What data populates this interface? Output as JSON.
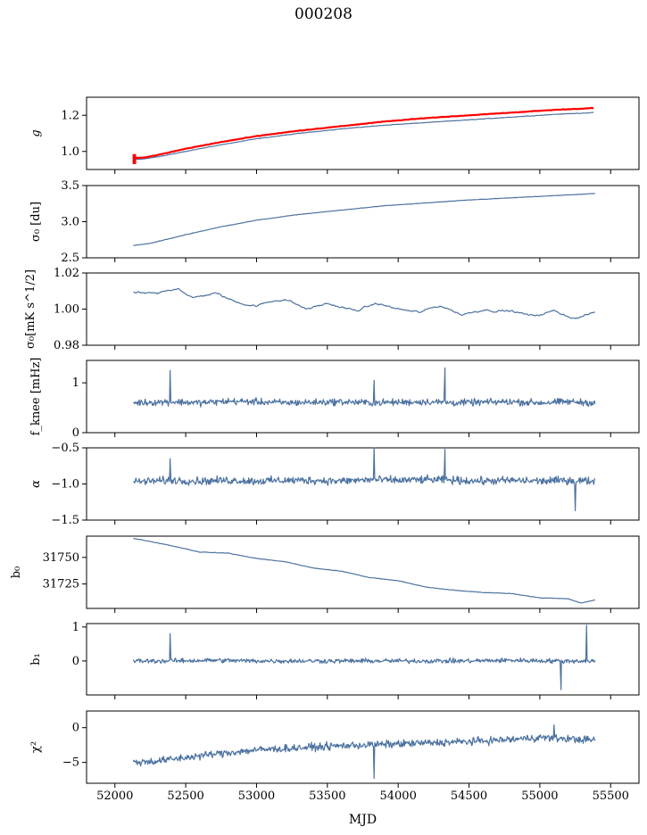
{
  "title": "000208",
  "xlabel": "MJD",
  "x_ticks": [
    52000,
    52500,
    53000,
    53500,
    54000,
    54500,
    55000,
    55500
  ],
  "colors": {
    "series": "#4c72a0",
    "model": "#ff0000",
    "axes": "#000000"
  },
  "chart_data": [
    {
      "type": "line",
      "panel": "g",
      "ylabel": "g",
      "ylim": [
        0.9,
        1.3
      ],
      "yticks": [
        1.0,
        1.2
      ],
      "grid": false,
      "x": [
        52130,
        52200,
        52300,
        52500,
        52700,
        53000,
        53300,
        53600,
        53900,
        54200,
        54500,
        54800,
        55100,
        55380
      ],
      "series": [
        {
          "values": [
            0.955,
            0.958,
            0.97,
            1.0,
            1.03,
            1.07,
            1.1,
            1.125,
            1.145,
            1.16,
            1.175,
            1.19,
            1.205,
            1.215
          ]
        },
        {
          "values": [
            0.965,
            0.965,
            0.98,
            1.015,
            1.045,
            1.085,
            1.115,
            1.14,
            1.165,
            1.185,
            1.2,
            1.215,
            1.23,
            1.24
          ]
        }
      ]
    },
    {
      "type": "line",
      "panel": "sigma0_du",
      "ylabel": "σ₀ [du]",
      "ylim": [
        2.5,
        3.5
      ],
      "yticks": [
        2.5,
        3.0,
        3.5
      ],
      "grid": false,
      "x": [
        52130,
        52250,
        52500,
        52750,
        53000,
        53300,
        53600,
        53900,
        54200,
        54500,
        54800,
        55100,
        55390
      ],
      "values": [
        2.67,
        2.7,
        2.82,
        2.93,
        3.02,
        3.1,
        3.16,
        3.22,
        3.26,
        3.3,
        3.33,
        3.36,
        3.39
      ]
    },
    {
      "type": "line",
      "panel": "sigma0_mK",
      "ylabel": "σ₀[mK s^1/2]",
      "ylim": [
        0.98,
        1.02
      ],
      "yticks": [
        0.98,
        1.0,
        1.02
      ],
      "grid": false,
      "x": [
        52130,
        52300,
        52450,
        52550,
        52700,
        52850,
        53000,
        53200,
        53350,
        53500,
        53700,
        53850,
        54000,
        54150,
        54300,
        54450,
        54600,
        54800,
        54950,
        55100,
        55250,
        55390
      ],
      "values": [
        1.009,
        1.008,
        1.012,
        1.006,
        1.009,
        1.004,
        1.002,
        1.006,
        1.0,
        1.003,
        0.999,
        1.003,
        1.0,
        0.998,
        1.002,
        0.997,
        1.0,
        0.999,
        0.996,
        0.999,
        0.995,
        0.998
      ]
    },
    {
      "type": "line",
      "panel": "fknee",
      "ylabel": "f_knee [mHz]",
      "ylim": [
        0,
        1.45
      ],
      "yticks": [
        0,
        1
      ],
      "grid": false,
      "x": [
        52130,
        52400,
        52600,
        52800,
        53000,
        53200,
        53400,
        53600,
        53800,
        54000,
        54200,
        54400,
        54600,
        54800,
        55000,
        55200,
        55390
      ],
      "values": [
        0.6,
        0.62,
        0.6,
        0.63,
        0.62,
        0.6,
        0.61,
        0.62,
        0.6,
        0.61,
        0.62,
        0.6,
        0.61,
        0.62,
        0.6,
        0.62,
        0.6
      ],
      "spikes": [
        {
          "x": 52390,
          "y": 1.25
        },
        {
          "x": 54330,
          "y": 1.3
        },
        {
          "x": 53830,
          "y": 1.05
        }
      ]
    },
    {
      "type": "line",
      "panel": "alpha",
      "ylabel": "α",
      "ylim": [
        -1.5,
        -0.5
      ],
      "yticks": [
        -1.5,
        -1.0,
        -0.5
      ],
      "grid": false,
      "x": [
        52130,
        52400,
        52600,
        52800,
        53000,
        53200,
        53400,
        53600,
        53800,
        54000,
        54200,
        54400,
        54600,
        54800,
        55000,
        55200,
        55390
      ],
      "values": [
        -0.97,
        -0.95,
        -0.96,
        -0.95,
        -0.96,
        -0.95,
        -0.95,
        -0.96,
        -0.94,
        -0.95,
        -0.94,
        -0.95,
        -0.96,
        -0.95,
        -0.96,
        -0.95,
        -0.96
      ],
      "spikes": [
        {
          "x": 53830,
          "y": -0.5
        },
        {
          "x": 54330,
          "y": -0.52
        },
        {
          "x": 52390,
          "y": -0.65
        },
        {
          "x": 55250,
          "y": -1.37
        }
      ]
    },
    {
      "type": "line",
      "panel": "b0",
      "ylabel": "b₀",
      "ylim": [
        31702,
        31770
      ],
      "yticks": [
        31725,
        31750
      ],
      "grid": false,
      "x": [
        52130,
        52250,
        52400,
        52600,
        52800,
        53000,
        53200,
        53400,
        53600,
        53800,
        54000,
        54200,
        54400,
        54600,
        54800,
        55000,
        55200,
        55290,
        55390
      ],
      "values": [
        31768,
        31765,
        31761,
        31755,
        31754,
        31749,
        31746,
        31740,
        31737,
        31731,
        31728,
        31722,
        31719,
        31717,
        31716,
        31712,
        31711,
        31707,
        31710
      ]
    },
    {
      "type": "line",
      "panel": "b1",
      "ylabel": "b₁",
      "ylim": [
        -1.0,
        1.1
      ],
      "yticks": [
        0,
        1
      ],
      "grid": false,
      "x": [
        52130,
        52400,
        52700,
        53000,
        53300,
        53600,
        53900,
        54200,
        54500,
        54800,
        55100,
        55390
      ],
      "values": [
        0.0,
        0.0,
        0.02,
        0.0,
        0.0,
        0.0,
        0.0,
        0.0,
        0.0,
        0.02,
        0.0,
        0.0
      ],
      "spikes": [
        {
          "x": 52390,
          "y": 0.8
        },
        {
          "x": 55330,
          "y": 1.05
        },
        {
          "x": 55150,
          "y": -0.85
        }
      ]
    },
    {
      "type": "line",
      "panel": "chi2",
      "ylabel": "χ²",
      "ylim": [
        -8,
        2.4
      ],
      "yticks": [
        -5,
        0
      ],
      "grid": false,
      "x": [
        52130,
        52300,
        52500,
        52700,
        53000,
        53300,
        53600,
        53900,
        54200,
        54500,
        54800,
        55000,
        55200,
        55390
      ],
      "values": [
        -5.0,
        -4.8,
        -4.3,
        -3.8,
        -3.2,
        -2.9,
        -2.6,
        -2.4,
        -2.2,
        -2.0,
        -1.7,
        -1.4,
        -1.6,
        -1.8
      ],
      "spikes": [
        {
          "x": 53830,
          "y": -7.3
        },
        {
          "x": 55100,
          "y": 0.4
        }
      ]
    }
  ]
}
